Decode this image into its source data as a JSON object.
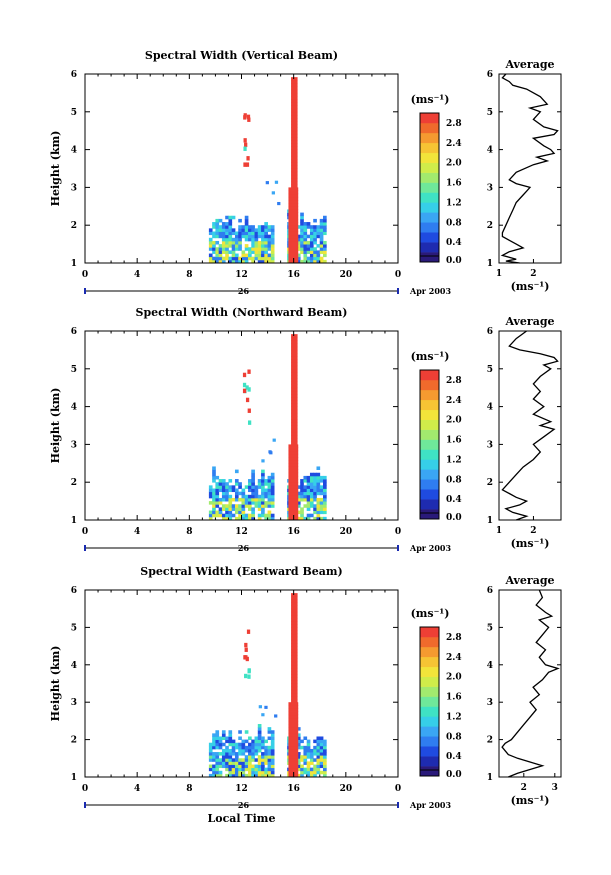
{
  "chart_data": [
    {
      "type": "heatmap",
      "title": "Spectral Width (Vertical Beam)",
      "ylabel": "Height (km)",
      "xlim": [
        0,
        24
      ],
      "ylim": [
        1,
        6
      ],
      "xticks": [
        "0",
        "4",
        "8",
        "12",
        "16",
        "20",
        "0"
      ],
      "yticks": [
        "1",
        "2",
        "3",
        "4",
        "5",
        "6"
      ],
      "date_label": "26",
      "month_label": "Apr 2003",
      "colorbar": {
        "unit": "(ms⁻¹)",
        "ticks": [
          "0.0",
          "0.4",
          "0.8",
          "1.2",
          "1.6",
          "2.0",
          "2.4",
          "2.8"
        ],
        "range": [
          0,
          3.0
        ]
      },
      "average": {
        "title": "Average",
        "xlabel": "(ms⁻¹)",
        "xticks": [
          "1",
          "2"
        ],
        "xlim": [
          1,
          2.8
        ],
        "profile": [
          [
            1.0,
            1.6
          ],
          [
            1.05,
            1.2
          ],
          [
            1.1,
            1.5
          ],
          [
            1.2,
            1.1
          ],
          [
            1.3,
            1.3
          ],
          [
            1.4,
            1.7
          ],
          [
            1.5,
            1.5
          ],
          [
            1.6,
            1.3
          ],
          [
            1.7,
            1.1
          ],
          [
            1.8,
            1.1
          ],
          [
            2.0,
            1.2
          ],
          [
            2.2,
            1.3
          ],
          [
            2.4,
            1.4
          ],
          [
            2.6,
            1.5
          ],
          [
            2.8,
            1.7
          ],
          [
            2.9,
            1.8
          ],
          [
            3.0,
            1.9
          ],
          [
            3.1,
            1.5
          ],
          [
            3.2,
            1.3
          ],
          [
            3.4,
            1.5
          ],
          [
            3.6,
            2.0
          ],
          [
            3.7,
            2.4
          ],
          [
            3.8,
            2.1
          ],
          [
            3.9,
            2.6
          ],
          [
            4.0,
            2.5
          ],
          [
            4.1,
            2.3
          ],
          [
            4.3,
            2.0
          ],
          [
            4.4,
            2.6
          ],
          [
            4.5,
            2.7
          ],
          [
            4.6,
            2.3
          ],
          [
            4.8,
            2.0
          ],
          [
            5.0,
            2.2
          ],
          [
            5.1,
            1.9
          ],
          [
            5.2,
            2.4
          ],
          [
            5.4,
            2.2
          ],
          [
            5.6,
            1.8
          ],
          [
            5.7,
            1.4
          ],
          [
            5.8,
            1.3
          ],
          [
            5.9,
            1.1
          ],
          [
            6.0,
            1.2
          ]
        ]
      }
    },
    {
      "type": "heatmap",
      "title": "Spectral Width (Northward Beam)",
      "ylabel": "Height (km)",
      "xlim": [
        0,
        24
      ],
      "ylim": [
        1,
        6
      ],
      "xticks": [
        "0",
        "4",
        "8",
        "12",
        "16",
        "20",
        "0"
      ],
      "yticks": [
        "1",
        "2",
        "3",
        "4",
        "5",
        "6"
      ],
      "date_label": "26",
      "month_label": "Apr 2003",
      "colorbar": {
        "unit": "(ms⁻¹)",
        "ticks": [
          "0.0",
          "0.4",
          "0.8",
          "1.2",
          "1.6",
          "2.0",
          "2.4",
          "2.8"
        ],
        "range": [
          0,
          3.0
        ]
      },
      "average": {
        "title": "Average",
        "xlabel": "(ms⁻¹)",
        "xticks": [
          "1",
          "2"
        ],
        "xlim": [
          1,
          2.8
        ],
        "profile": [
          [
            1.0,
            1.5
          ],
          [
            1.1,
            1.8
          ],
          [
            1.2,
            1.4
          ],
          [
            1.3,
            1.2
          ],
          [
            1.4,
            1.6
          ],
          [
            1.5,
            1.8
          ],
          [
            1.6,
            1.5
          ],
          [
            1.7,
            1.3
          ],
          [
            1.8,
            1.1
          ],
          [
            2.0,
            1.3
          ],
          [
            2.2,
            1.5
          ],
          [
            2.4,
            1.7
          ],
          [
            2.6,
            2.0
          ],
          [
            2.8,
            2.2
          ],
          [
            3.0,
            2.0
          ],
          [
            3.2,
            2.3
          ],
          [
            3.4,
            2.6
          ],
          [
            3.5,
            2.2
          ],
          [
            3.6,
            2.5
          ],
          [
            3.8,
            2.0
          ],
          [
            4.0,
            2.3
          ],
          [
            4.2,
            2.0
          ],
          [
            4.4,
            2.2
          ],
          [
            4.6,
            2.0
          ],
          [
            4.8,
            2.2
          ],
          [
            5.0,
            2.5
          ],
          [
            5.1,
            2.3
          ],
          [
            5.2,
            2.7
          ],
          [
            5.3,
            2.6
          ],
          [
            5.4,
            2.2
          ],
          [
            5.5,
            1.6
          ],
          [
            5.6,
            1.3
          ],
          [
            5.8,
            1.5
          ],
          [
            6.0,
            1.8
          ]
        ]
      }
    },
    {
      "type": "heatmap",
      "title": "Spectral Width (Eastward Beam)",
      "ylabel": "Height (km)",
      "xlabel": "Local Time",
      "xlim": [
        0,
        24
      ],
      "ylim": [
        1,
        6
      ],
      "xticks": [
        "0",
        "4",
        "8",
        "12",
        "16",
        "20",
        "0"
      ],
      "yticks": [
        "1",
        "2",
        "3",
        "4",
        "5",
        "6"
      ],
      "date_label": "26",
      "month_label": "Apr 2003",
      "colorbar": {
        "unit": "(ms⁻¹)",
        "ticks": [
          "0.0",
          "0.4",
          "0.8",
          "1.2",
          "1.6",
          "2.0",
          "2.4",
          "2.8"
        ],
        "range": [
          0,
          3.0
        ]
      },
      "average": {
        "title": "Average",
        "xlabel": "(ms⁻¹)",
        "xticks": [
          "2",
          "3"
        ],
        "xlim": [
          1.2,
          3.2
        ],
        "profile": [
          [
            1.0,
            1.5
          ],
          [
            1.1,
            1.8
          ],
          [
            1.2,
            2.2
          ],
          [
            1.3,
            2.6
          ],
          [
            1.4,
            2.2
          ],
          [
            1.5,
            1.8
          ],
          [
            1.6,
            1.5
          ],
          [
            1.8,
            1.3
          ],
          [
            1.9,
            1.4
          ],
          [
            2.0,
            1.6
          ],
          [
            2.2,
            1.8
          ],
          [
            2.4,
            2.0
          ],
          [
            2.6,
            2.2
          ],
          [
            2.8,
            2.4
          ],
          [
            3.0,
            2.2
          ],
          [
            3.2,
            2.5
          ],
          [
            3.4,
            2.3
          ],
          [
            3.6,
            2.6
          ],
          [
            3.8,
            2.8
          ],
          [
            3.9,
            3.1
          ],
          [
            4.0,
            2.7
          ],
          [
            4.2,
            2.5
          ],
          [
            4.4,
            2.7
          ],
          [
            4.6,
            2.4
          ],
          [
            4.8,
            2.6
          ],
          [
            5.0,
            2.8
          ],
          [
            5.2,
            2.5
          ],
          [
            5.3,
            2.9
          ],
          [
            5.4,
            2.7
          ],
          [
            5.6,
            2.4
          ],
          [
            5.8,
            2.6
          ],
          [
            6.0,
            2.5
          ]
        ]
      }
    }
  ]
}
